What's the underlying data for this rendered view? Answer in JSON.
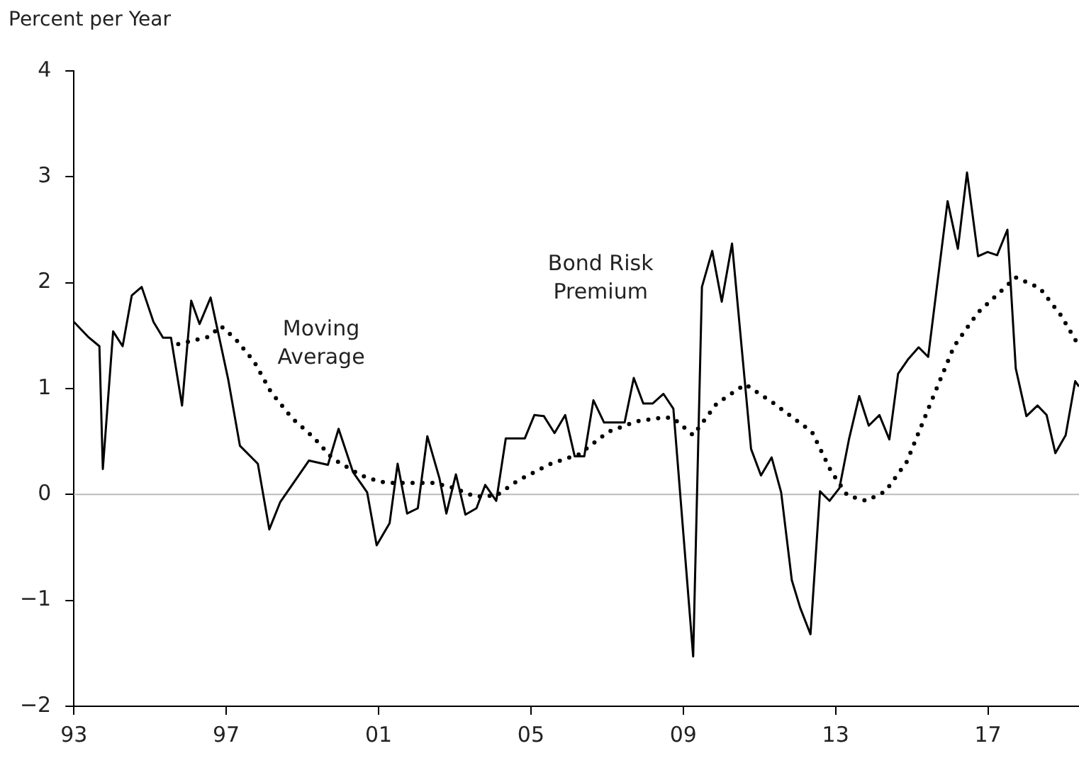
{
  "chart_data": {
    "type": "line",
    "ylabel": "Percent per Year",
    "xlim": [
      1993,
      2019.39
    ],
    "xticks": [
      {
        "value": 1993,
        "label": "93"
      },
      {
        "value": 1997,
        "label": "97"
      },
      {
        "value": 2001,
        "label": "01"
      },
      {
        "value": 2005,
        "label": "05"
      },
      {
        "value": 2009,
        "label": "09"
      },
      {
        "value": 2013,
        "label": "13"
      },
      {
        "value": 2017,
        "label": "17"
      }
    ],
    "ylim": [
      -2,
      4
    ],
    "yticks": [
      {
        "value": -2,
        "label": "−2"
      },
      {
        "value": -1,
        "label": "−1"
      },
      0,
      1,
      2,
      3,
      4
    ],
    "grid": false,
    "legend": false,
    "marker": "none",
    "ref_lines": [
      {
        "axis": "y",
        "value": 0,
        "color": "#bbbbbb"
      }
    ],
    "series": [
      {
        "name": "Bond Risk Premium",
        "color": "#000000",
        "line_style": "solid",
        "x": [
          1993.0,
          1993.37,
          1993.67,
          1993.76,
          1994.03,
          1994.28,
          1994.52,
          1994.78,
          1995.09,
          1995.34,
          1995.55,
          1995.84,
          1996.08,
          1996.3,
          1996.59,
          1997.05,
          1997.36,
          1997.83,
          1998.13,
          1998.42,
          1999.17,
          1999.67,
          1999.95,
          2000.33,
          2000.7,
          2000.95,
          2001.29,
          2001.5,
          2001.75,
          2002.03,
          2002.28,
          2002.6,
          2002.78,
          2003.03,
          2003.28,
          2003.57,
          2003.8,
          2004.09,
          2004.34,
          2004.84,
          2005.09,
          2005.34,
          2005.62,
          2005.9,
          2006.15,
          2006.4,
          2006.64,
          2006.92,
          2007.46,
          2007.7,
          2007.95,
          2008.2,
          2008.48,
          2008.74,
          2009.26,
          2009.49,
          2009.76,
          2010.01,
          2010.28,
          2010.78,
          2011.04,
          2011.32,
          2011.57,
          2011.85,
          2012.07,
          2012.34,
          2012.59,
          2012.84,
          2013.1,
          2013.35,
          2013.62,
          2013.87,
          2014.15,
          2014.41,
          2014.64,
          2014.91,
          2015.18,
          2015.43,
          2015.94,
          2016.21,
          2016.45,
          2016.74,
          2016.99,
          2017.24,
          2017.51,
          2017.73,
          2018.01,
          2018.3,
          2018.54,
          2018.77,
          2019.04,
          2019.29,
          2019.39
        ],
        "values": [
          1.63,
          1.49,
          1.4,
          0.24,
          1.54,
          1.4,
          1.88,
          1.96,
          1.63,
          1.48,
          1.48,
          0.84,
          1.83,
          1.61,
          1.86,
          1.09,
          0.46,
          0.29,
          -0.33,
          -0.07,
          0.32,
          0.28,
          0.62,
          0.21,
          0.02,
          -0.48,
          -0.27,
          0.29,
          -0.18,
          -0.13,
          0.55,
          0.15,
          -0.18,
          0.19,
          -0.19,
          -0.13,
          0.09,
          -0.06,
          0.53,
          0.53,
          0.75,
          0.74,
          0.58,
          0.75,
          0.36,
          0.36,
          0.89,
          0.68,
          0.68,
          1.1,
          0.86,
          0.86,
          0.95,
          0.81,
          -1.53,
          1.96,
          2.3,
          1.82,
          2.37,
          0.43,
          0.18,
          0.35,
          0.02,
          -0.81,
          -1.07,
          -1.32,
          0.03,
          -0.06,
          0.06,
          0.52,
          0.93,
          0.65,
          0.75,
          0.52,
          1.14,
          1.28,
          1.39,
          1.3,
          2.77,
          2.32,
          3.04,
          2.25,
          2.29,
          2.26,
          2.5,
          1.19,
          0.74,
          0.84,
          0.75,
          0.39,
          0.56,
          1.07,
          1.02
        ]
      },
      {
        "name": "Moving Average",
        "color": "#000000",
        "line_style": "dotted",
        "x": [
          1995.74,
          1996.55,
          1996.86,
          1997.24,
          1997.74,
          1998.17,
          1998.73,
          1999.29,
          1999.79,
          2000.54,
          2001.04,
          2001.29,
          2002.41,
          2002.91,
          2003.53,
          2004.09,
          2004.65,
          2005.52,
          2006.27,
          2007.02,
          2007.77,
          2008.51,
          2008.74,
          2009.26,
          2009.88,
          2010.63,
          2011.38,
          2012.38,
          2012.88,
          2013.31,
          2013.81,
          2014.31,
          2014.87,
          2015.49,
          2016.11,
          2016.74,
          2017.73,
          2018.36,
          2018.92,
          2019.39
        ],
        "values": [
          1.42,
          1.49,
          1.59,
          1.47,
          1.25,
          0.97,
          0.72,
          0.54,
          0.34,
          0.18,
          0.12,
          0.11,
          0.11,
          0.07,
          -0.02,
          -0.01,
          0.13,
          0.29,
          0.38,
          0.59,
          0.69,
          0.73,
          0.72,
          0.56,
          0.86,
          1.04,
          0.86,
          0.59,
          0.22,
          -0.01,
          -0.06,
          0.03,
          0.31,
          0.86,
          1.4,
          1.72,
          2.05,
          1.95,
          1.69,
          1.4
        ]
      }
    ]
  }
}
